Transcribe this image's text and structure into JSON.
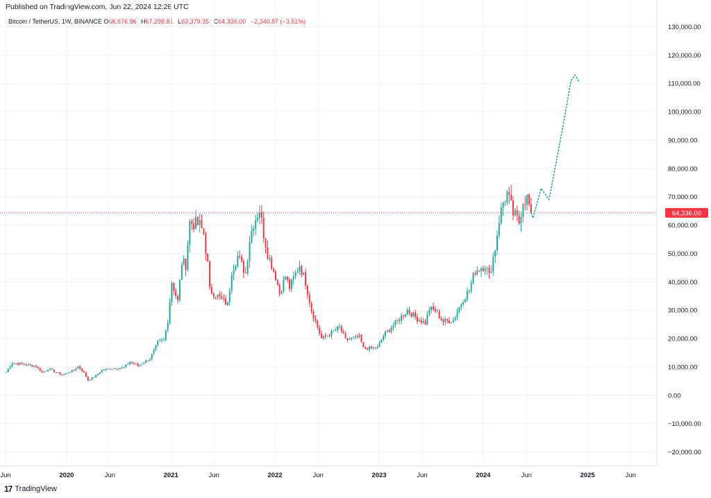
{
  "header": {
    "published": "Published on TradingView.com, Jun 22, 2024 12:28 UTC"
  },
  "legend": {
    "symbol": "Bitcoin / TetherUS, 1W, BINANCE",
    "o_label": "O",
    "o_value": "66,676.86",
    "h_label": "H",
    "h_value": "67,298.81",
    "l_label": "L",
    "l_value": "63,379.35",
    "c_label": "C",
    "c_value": "64,336.00",
    "change": "−2,340.87 (−3.51%)"
  },
  "footer": {
    "logo_glyph": "17",
    "brand": "TradingView"
  },
  "colors": {
    "up": "#26a69a",
    "down": "#f23645",
    "grid": "#f0f3fa",
    "axis_text": "#131722",
    "price_line": "#f23645",
    "projection": "#26a69a"
  },
  "chart_data": {
    "type": "candlestick",
    "title": "Bitcoin / TetherUS, 1W, BINANCE",
    "last_price_label": "64,336.00",
    "y_axis": {
      "range": [
        -25000,
        135000
      ],
      "tick_values": [
        130000,
        120000,
        110000,
        100000,
        90000,
        80000,
        70000,
        60000,
        50000,
        40000,
        30000,
        20000,
        10000,
        0,
        -10000,
        -20000
      ],
      "tick_labels": [
        "130,000.00",
        "120,000.00",
        "110,000.00",
        "100,000.00",
        "90,000.00",
        "80,000.00",
        "70,000.00",
        "60,000.00",
        "50,000.00",
        "40,000.00",
        "30,000.00",
        "20,000.00",
        "10,000.00",
        "0.00",
        "−10,000.00",
        "−20,000.00"
      ]
    },
    "x_axis": {
      "range": [
        "2019-06-01",
        "2025-09-01"
      ],
      "ticks": [
        {
          "label": "Jun",
          "date": "2019-06-01"
        },
        {
          "label": "2020",
          "date": "2020-01-01"
        },
        {
          "label": "Jun",
          "date": "2020-06-01"
        },
        {
          "label": "2021",
          "date": "2021-01-01"
        },
        {
          "label": "Jun",
          "date": "2021-06-01"
        },
        {
          "label": "2022",
          "date": "2022-01-01"
        },
        {
          "label": "Jun",
          "date": "2022-06-01"
        },
        {
          "label": "2023",
          "date": "2023-01-01"
        },
        {
          "label": "Jun",
          "date": "2023-06-01"
        },
        {
          "label": "2024",
          "date": "2024-01-01"
        },
        {
          "label": "Jun",
          "date": "2024-06-01"
        },
        {
          "label": "2025",
          "date": "2025-01-01"
        },
        {
          "label": "Jun",
          "date": "2025-06-01"
        }
      ]
    },
    "grid": true,
    "close_path": [
      [
        "2019-06-03",
        8200
      ],
      [
        "2019-06-24",
        11500
      ],
      [
        "2019-07-08",
        11200
      ],
      [
        "2019-08-05",
        10900
      ],
      [
        "2019-09-16",
        10200
      ],
      [
        "2019-10-07",
        8000
      ],
      [
        "2019-10-28",
        9300
      ],
      [
        "2019-12-16",
        7100
      ],
      [
        "2020-01-27",
        8900
      ],
      [
        "2020-02-10",
        10200
      ],
      [
        "2020-03-02",
        8000
      ],
      [
        "2020-03-16",
        5200
      ],
      [
        "2020-04-13",
        6900
      ],
      [
        "2020-05-04",
        8900
      ],
      [
        "2020-06-08",
        9500
      ],
      [
        "2020-07-20",
        9700
      ],
      [
        "2020-08-10",
        11800
      ],
      [
        "2020-09-07",
        10400
      ],
      [
        "2020-10-19",
        12900
      ],
      [
        "2020-11-16",
        18500
      ],
      [
        "2020-12-07",
        19200
      ],
      [
        "2020-12-21",
        26500
      ],
      [
        "2021-01-04",
        40000
      ],
      [
        "2021-01-25",
        33000
      ],
      [
        "2021-02-08",
        47000
      ],
      [
        "2021-02-22",
        46000
      ],
      [
        "2021-03-08",
        61000
      ],
      [
        "2021-04-12",
        60000
      ],
      [
        "2021-04-26",
        57000
      ],
      [
        "2021-05-10",
        46000
      ],
      [
        "2021-05-17",
        37000
      ],
      [
        "2021-06-07",
        35500
      ],
      [
        "2021-07-19",
        32000
      ],
      [
        "2021-08-02",
        44000
      ],
      [
        "2021-08-23",
        49000
      ],
      [
        "2021-09-06",
        46000
      ],
      [
        "2021-09-20",
        43000
      ],
      [
        "2021-10-04",
        55000
      ],
      [
        "2021-10-18",
        61000
      ],
      [
        "2021-11-08",
        65500
      ],
      [
        "2021-11-22",
        57000
      ],
      [
        "2021-12-06",
        50000
      ],
      [
        "2022-01-03",
        42000
      ],
      [
        "2022-01-17",
        36000
      ],
      [
        "2022-02-07",
        42000
      ],
      [
        "2022-02-21",
        38000
      ],
      [
        "2022-03-28",
        46000
      ],
      [
        "2022-04-18",
        40000
      ],
      [
        "2022-05-09",
        30000
      ],
      [
        "2022-06-13",
        20000
      ],
      [
        "2022-07-04",
        21000
      ],
      [
        "2022-08-15",
        24000
      ],
      [
        "2022-09-05",
        19500
      ],
      [
        "2022-10-24",
        20500
      ],
      [
        "2022-11-07",
        16500
      ],
      [
        "2022-12-26",
        16600
      ],
      [
        "2023-01-16",
        21000
      ],
      [
        "2023-02-13",
        24000
      ],
      [
        "2023-03-13",
        27000
      ],
      [
        "2023-04-10",
        30000
      ],
      [
        "2023-05-15",
        27000
      ],
      [
        "2023-06-12",
        25500
      ],
      [
        "2023-06-26",
        30500
      ],
      [
        "2023-07-17",
        29800
      ],
      [
        "2023-08-14",
        26000
      ],
      [
        "2023-09-18",
        26500
      ],
      [
        "2023-10-23",
        34000
      ],
      [
        "2023-11-13",
        37000
      ],
      [
        "2023-12-04",
        44000
      ],
      [
        "2024-01-08",
        46000
      ],
      [
        "2024-01-22",
        42000
      ],
      [
        "2024-02-12",
        52000
      ],
      [
        "2024-02-26",
        62000
      ],
      [
        "2024-03-11",
        68000
      ],
      [
        "2024-03-25",
        71000
      ],
      [
        "2024-04-15",
        64000
      ],
      [
        "2024-05-06",
        61000
      ],
      [
        "2024-05-20",
        69000
      ],
      [
        "2024-06-03",
        69500
      ],
      [
        "2024-06-17",
        64336
      ]
    ],
    "projection_path": [
      [
        "2024-06-17",
        64336
      ],
      [
        "2024-06-24",
        62500
      ],
      [
        "2024-07-22",
        73000
      ],
      [
        "2024-08-19",
        69000
      ],
      [
        "2024-10-07",
        95000
      ],
      [
        "2024-11-04",
        111000
      ],
      [
        "2024-11-18",
        113000
      ],
      [
        "2024-12-02",
        110500
      ]
    ]
  }
}
